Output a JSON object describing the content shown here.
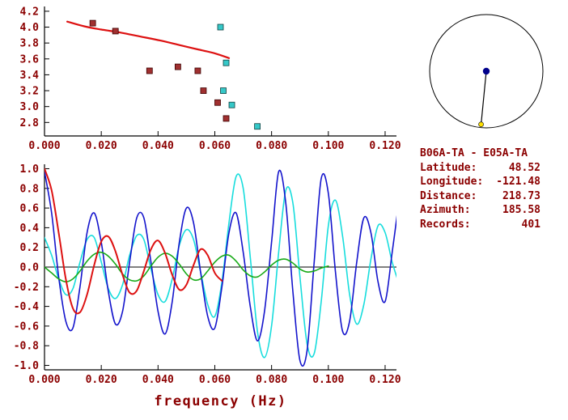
{
  "colors": {
    "text": "#8b0000",
    "axis": "#000000",
    "background": "#ffffff"
  },
  "info": {
    "title": "B06A-TA - E05A-TA",
    "fields": [
      {
        "label": "Latitude:",
        "value": "48.52"
      },
      {
        "label": "Longitude:",
        "value": "-121.48"
      },
      {
        "label": "Distance:",
        "value": "218.73"
      },
      {
        "label": "Azimuth:",
        "value": "185.58"
      },
      {
        "label": "Records:",
        "value": "401"
      }
    ]
  },
  "azimuth_plot": {
    "azimuth_deg": 185.58,
    "ring_color": "#000000",
    "station_dot_color": "#00008b",
    "event_dot_color": "#ffe000"
  },
  "chart_data": [
    {
      "id": "dispersion-picks",
      "type": "scatter",
      "title": "",
      "xlabel": "",
      "ylabel": "",
      "xlim": [
        0,
        0.124
      ],
      "ylim": [
        2.63,
        4.26
      ],
      "grid": false,
      "x_ticks": [
        [
          0,
          "0.000"
        ],
        [
          0.02,
          "0.020"
        ],
        [
          0.04,
          "0.040"
        ],
        [
          0.06,
          "0.060"
        ],
        [
          0.08,
          "0.080"
        ],
        [
          0.1,
          "0.100"
        ],
        [
          0.12,
          "0.120"
        ]
      ],
      "y_ticks": [
        [
          2.8,
          "2.8"
        ],
        [
          3.0,
          "3.0"
        ],
        [
          3.2,
          "3.2"
        ],
        [
          3.4,
          "3.4"
        ],
        [
          3.6,
          "3.6"
        ],
        [
          3.8,
          "3.8"
        ],
        [
          4.0,
          "4.0"
        ],
        [
          4.2,
          "4.2"
        ]
      ],
      "series": [
        {
          "name": "model-dispersion-curve",
          "kind": "line",
          "color": "#dd1111",
          "width": 2.2,
          "points": [
            [
              0.008,
              4.07
            ],
            [
              0.014,
              4.01
            ],
            [
              0.02,
              3.97
            ],
            [
              0.027,
              3.93
            ],
            [
              0.034,
              3.88
            ],
            [
              0.041,
              3.83
            ],
            [
              0.048,
              3.77
            ],
            [
              0.054,
              3.72
            ],
            [
              0.06,
              3.67
            ],
            [
              0.065,
              3.61
            ]
          ]
        },
        {
          "name": "picks-maroon",
          "kind": "scatter",
          "marker": "square",
          "color": "#a03030",
          "edge": "#3c0000",
          "points": [
            [
              0.017,
              4.05
            ],
            [
              0.025,
              3.95
            ],
            [
              0.037,
              3.45
            ],
            [
              0.047,
              3.5
            ],
            [
              0.054,
              3.45
            ],
            [
              0.056,
              3.2
            ],
            [
              0.061,
              3.05
            ],
            [
              0.064,
              2.85
            ]
          ]
        },
        {
          "name": "picks-cyan",
          "kind": "scatter",
          "marker": "square",
          "color": "#35c8c8",
          "edge": "#104040",
          "points": [
            [
              0.062,
              4.0
            ],
            [
              0.064,
              3.55
            ],
            [
              0.063,
              3.2
            ],
            [
              0.066,
              3.02
            ],
            [
              0.075,
              2.75
            ]
          ]
        }
      ]
    },
    {
      "id": "waveform-spectra",
      "type": "line",
      "title": "",
      "xlabel": "frequency (Hz)",
      "ylabel": "",
      "xlim": [
        0,
        0.124
      ],
      "ylim": [
        -1.045,
        1.045
      ],
      "grid": false,
      "zero_line": true,
      "x_ticks": [
        [
          0,
          "0.000"
        ],
        [
          0.02,
          "0.020"
        ],
        [
          0.04,
          "0.040"
        ],
        [
          0.06,
          "0.060"
        ],
        [
          0.08,
          "0.080"
        ],
        [
          0.1,
          "0.100"
        ],
        [
          0.12,
          "0.120"
        ]
      ],
      "y_ticks": [
        [
          -1,
          "-1.0"
        ],
        [
          -0.8,
          "-0.8"
        ],
        [
          -0.6,
          "-0.6"
        ],
        [
          -0.4,
          "-0.4"
        ],
        [
          -0.2,
          "-0.2"
        ],
        [
          0,
          "0.0"
        ],
        [
          0.2,
          "0.2"
        ],
        [
          0.4,
          "0.4"
        ],
        [
          0.6,
          "0.6"
        ],
        [
          0.8,
          "0.8"
        ],
        [
          1,
          "1.0"
        ]
      ],
      "series": [
        {
          "name": "trace-cyan",
          "kind": "line",
          "color": "#17dddd",
          "width": 1.6,
          "x0": 0,
          "dx": 0.0025,
          "values": [
            0.3,
            0.12,
            -0.12,
            -0.28,
            -0.22,
            0.05,
            0.28,
            0.3,
            0.05,
            -0.22,
            -0.32,
            -0.18,
            0.12,
            0.32,
            0.28,
            -0.02,
            -0.28,
            -0.35,
            -0.12,
            0.22,
            0.38,
            0.28,
            -0.05,
            -0.38,
            -0.5,
            -0.15,
            0.45,
            0.92,
            0.8,
            0.1,
            -0.65,
            -0.92,
            -0.6,
            0.15,
            0.78,
            0.65,
            -0.1,
            -0.78,
            -0.88,
            -0.35,
            0.42,
            0.68,
            0.32,
            -0.28,
            -0.58,
            -0.38,
            0.08,
            0.42,
            0.35,
            0.05,
            -0.18
          ]
        },
        {
          "name": "trace-blue",
          "kind": "line",
          "color": "#1414cc",
          "width": 1.6,
          "x0": 0,
          "dx": 0.0025,
          "values": [
            0.97,
            0.55,
            -0.1,
            -0.55,
            -0.62,
            -0.2,
            0.35,
            0.55,
            0.25,
            -0.25,
            -0.58,
            -0.45,
            0.05,
            0.5,
            0.5,
            0.05,
            -0.45,
            -0.68,
            -0.35,
            0.25,
            0.6,
            0.45,
            -0.05,
            -0.5,
            -0.62,
            -0.2,
            0.35,
            0.55,
            0.15,
            -0.4,
            -0.75,
            -0.45,
            0.25,
            0.97,
            0.65,
            -0.25,
            -0.95,
            -0.85,
            0.05,
            0.9,
            0.75,
            -0.05,
            -0.65,
            -0.55,
            0.05,
            0.5,
            0.35,
            -0.15,
            -0.35,
            0.15,
            0.7
          ]
        },
        {
          "name": "trace-green",
          "kind": "line",
          "color": "#18aa18",
          "width": 1.6,
          "x0": 0,
          "dx": 0.0025,
          "values": [
            0,
            -0.06,
            -0.12,
            -0.15,
            -0.12,
            -0.04,
            0.06,
            0.13,
            0.15,
            0.11,
            0.03,
            -0.07,
            -0.13,
            -0.14,
            -0.09,
            0.01,
            0.1,
            0.14,
            0.11,
            0.03,
            -0.07,
            -0.13,
            -0.12,
            -0.04,
            0.05,
            0.11,
            0.12,
            0.06,
            -0.03,
            -0.09,
            -0.1,
            -0.05,
            0.02,
            0.07,
            0.08,
            0.04,
            -0.02,
            -0.05,
            -0.04,
            -0.01,
            0.01
          ]
        },
        {
          "name": "trace-red",
          "kind": "line",
          "color": "#dd1111",
          "width": 2,
          "x0": 0,
          "dx": 0.0025,
          "values": [
            1.0,
            0.78,
            0.35,
            -0.12,
            -0.42,
            -0.46,
            -0.28,
            0.02,
            0.26,
            0.31,
            0.16,
            -0.08,
            -0.26,
            -0.24,
            -0.04,
            0.18,
            0.27,
            0.14,
            -0.08,
            -0.23,
            -0.18,
            0.02,
            0.18,
            0.12,
            -0.06,
            -0.14
          ]
        }
      ]
    }
  ]
}
